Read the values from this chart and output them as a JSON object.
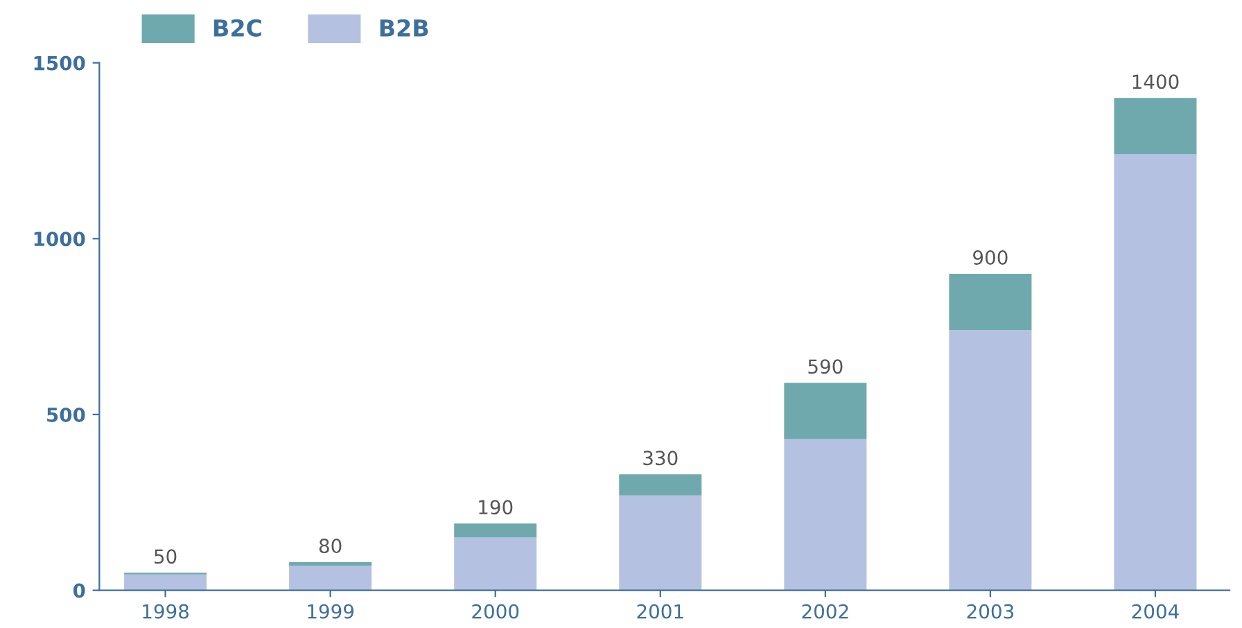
{
  "chart_data": {
    "type": "bar",
    "stacked": true,
    "categories": [
      "1998",
      "1999",
      "2000",
      "2001",
      "2002",
      "2003",
      "2004"
    ],
    "series": [
      {
        "name": "B2B",
        "color": "#b4c1e1",
        "values": [
          45,
          70,
          150,
          270,
          430,
          740,
          1240
        ]
      },
      {
        "name": "B2C",
        "color": "#6fa9ad",
        "values": [
          5,
          10,
          40,
          60,
          160,
          160,
          160
        ]
      }
    ],
    "totals": [
      "50",
      "80",
      "190",
      "330",
      "590",
      "900",
      "1400"
    ],
    "ylim": [
      0,
      1500
    ],
    "yticks": [
      0,
      500,
      1000,
      1500
    ],
    "grid": false,
    "legend": "top left"
  }
}
